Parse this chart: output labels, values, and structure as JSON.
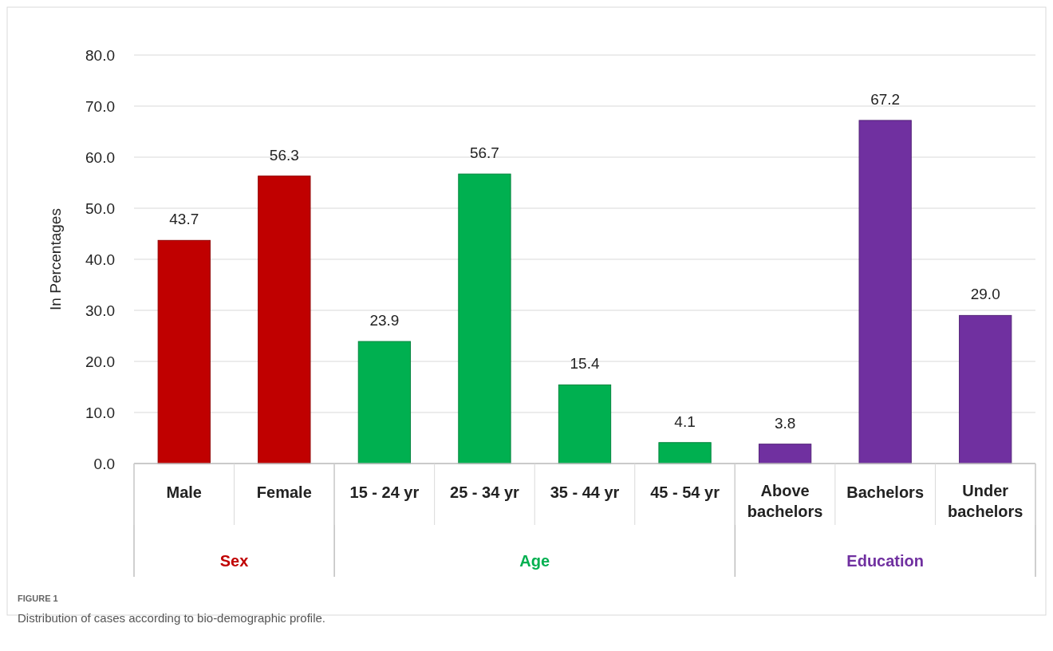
{
  "chart_data": {
    "type": "bar",
    "ylabel": "In Percentages",
    "categories": [
      "Male",
      "Female",
      "15 - 24 yr",
      "25 - 34 yr",
      "35 - 44 yr",
      "45 - 54 yr",
      "Above bachelors",
      "Bachelors",
      "Under bachelors"
    ],
    "series": [
      {
        "name": "Sex",
        "color": "#c00000",
        "values": [
          43.7,
          56.3,
          null,
          null,
          null,
          null,
          null,
          null,
          null
        ],
        "value_labels": [
          "43.7",
          "56.3",
          null,
          null,
          null,
          null,
          null,
          null,
          null
        ]
      },
      {
        "name": "Age",
        "color": "#00b050",
        "values": [
          null,
          null,
          23.9,
          56.7,
          15.4,
          4.1,
          null,
          null,
          null
        ],
        "value_labels": [
          null,
          null,
          "23.9",
          "56.7",
          "15.4",
          "4.1",
          null,
          null,
          null
        ]
      },
      {
        "name": "Education",
        "color": "#7030a0",
        "values": [
          null,
          null,
          null,
          null,
          null,
          null,
          3.8,
          67.2,
          29.0
        ],
        "value_labels": [
          null,
          null,
          null,
          null,
          null,
          null,
          "3.8",
          "67.2",
          "29.0"
        ]
      }
    ],
    "ylim": [
      0,
      80
    ],
    "yticks": [
      {
        "value": 0,
        "label": "0.0"
      },
      {
        "value": 10,
        "label": "10.0"
      },
      {
        "value": 20,
        "label": "20.0"
      },
      {
        "value": 30,
        "label": "30.0"
      },
      {
        "value": 40,
        "label": "40.0"
      },
      {
        "value": 50,
        "label": "50.0"
      },
      {
        "value": 60,
        "label": "60.0"
      },
      {
        "value": 70,
        "label": "70.0"
      },
      {
        "value": 80,
        "label": "80.0"
      }
    ],
    "grid": "y",
    "legend": false,
    "annotations": [
      "FIGURE 1",
      "Distribution of cases according to bio-demographic profile."
    ]
  }
}
